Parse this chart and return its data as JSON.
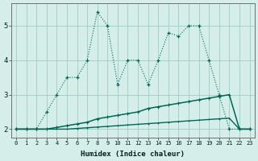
{
  "xlabel": "Humidex (Indice chaleur)",
  "bg_color": "#d5eeea",
  "grid_color": "#a0ccc6",
  "line_color": "#006655",
  "xlim_min": -0.5,
  "xlim_max": 23.5,
  "ylim_min": 1.75,
  "ylim_max": 5.65,
  "xticks": [
    0,
    1,
    2,
    3,
    4,
    5,
    6,
    7,
    8,
    9,
    10,
    11,
    12,
    13,
    14,
    15,
    16,
    17,
    18,
    19,
    20,
    21,
    22,
    23
  ],
  "yticks": [
    2,
    3,
    4,
    5
  ],
  "line1_x": [
    0,
    1,
    2,
    3,
    4,
    5,
    6,
    7,
    8,
    9,
    10,
    11,
    12,
    13,
    14,
    15,
    16,
    17,
    18,
    19,
    20,
    21,
    22,
    23
  ],
  "line1_y": [
    2.0,
    2.0,
    2.0,
    2.5,
    3.0,
    3.5,
    3.5,
    4.0,
    5.4,
    5.0,
    3.3,
    4.0,
    4.0,
    3.3,
    4.0,
    4.8,
    4.7,
    5.0,
    5.0,
    4.0,
    3.0,
    2.0,
    2.0,
    2.0
  ],
  "line2_x": [
    0,
    1,
    2,
    3,
    4,
    5,
    6,
    7,
    8,
    9,
    10,
    11,
    12,
    13,
    14,
    15,
    16,
    17,
    18,
    19,
    20,
    21,
    22,
    23
  ],
  "line2_y": [
    2.0,
    2.0,
    2.0,
    2.0,
    2.05,
    2.1,
    2.15,
    2.2,
    2.3,
    2.35,
    2.4,
    2.45,
    2.5,
    2.6,
    2.65,
    2.7,
    2.75,
    2.8,
    2.85,
    2.9,
    2.95,
    3.0,
    2.0,
    2.0
  ],
  "line3_x": [
    0,
    1,
    2,
    3,
    4,
    5,
    6,
    7,
    8,
    9,
    10,
    11,
    12,
    13,
    14,
    15,
    16,
    17,
    18,
    19,
    20,
    21,
    22,
    23
  ],
  "line3_y": [
    2.0,
    2.0,
    2.0,
    2.0,
    2.0,
    2.0,
    2.02,
    2.04,
    2.06,
    2.08,
    2.1,
    2.12,
    2.14,
    2.16,
    2.18,
    2.2,
    2.22,
    2.24,
    2.26,
    2.28,
    2.3,
    2.32,
    2.0,
    2.0
  ]
}
